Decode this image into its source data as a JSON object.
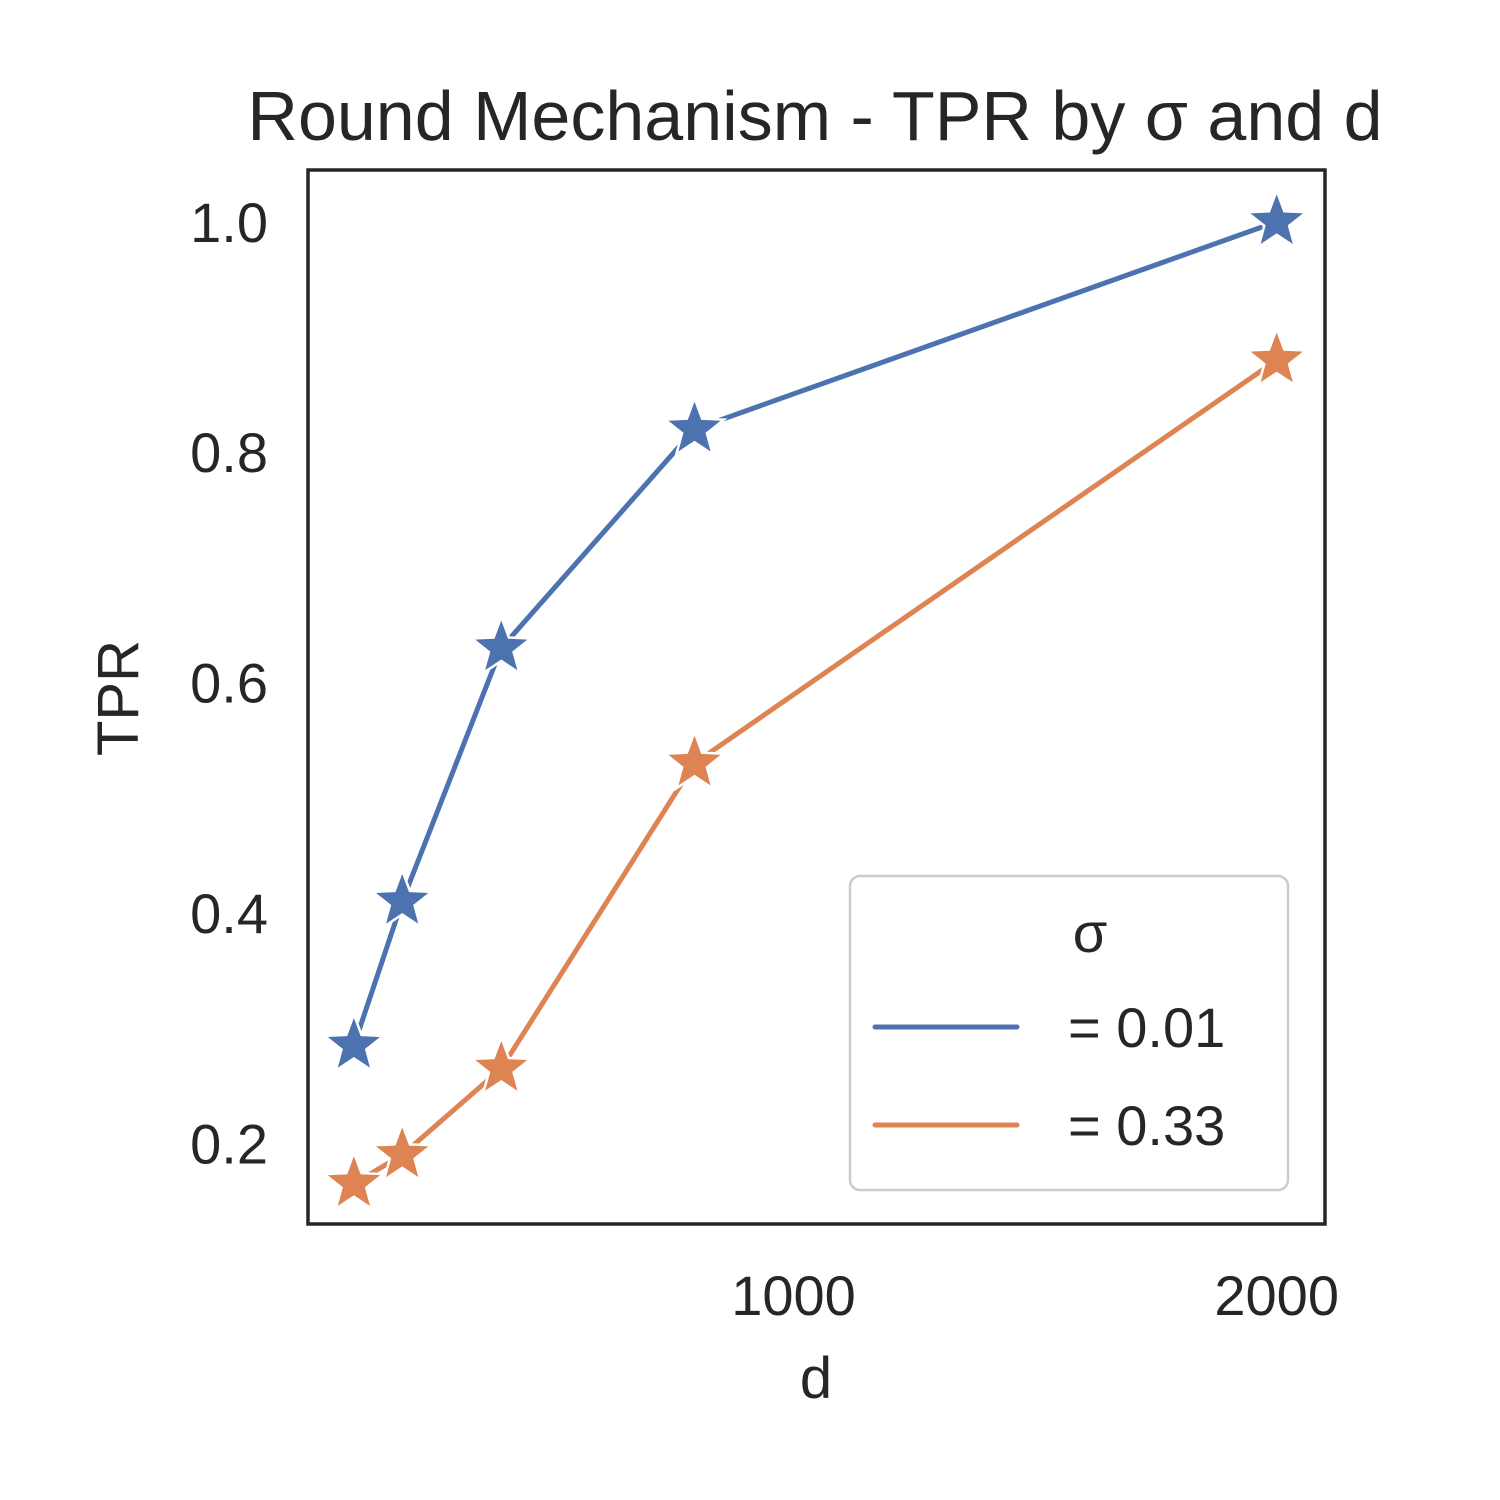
{
  "chart_data": {
    "type": "line",
    "title": "Round Mechanism - TPR by σ and d",
    "xlabel": "d",
    "ylabel": "TPR",
    "xlim": [
      -5,
      2100
    ],
    "ylim": [
      0.13,
      1.045
    ],
    "xticks": [
      1000,
      2000
    ],
    "yticks": [
      0.2,
      0.4,
      0.6,
      0.8,
      1.0
    ],
    "xtick_labels": [
      "1000",
      "2000"
    ],
    "ytick_labels": [
      "0.2",
      "0.4",
      "0.6",
      "0.8",
      "1.0"
    ],
    "grid": false,
    "marker": "star",
    "legend": {
      "title": "σ",
      "placement": "lower-right"
    },
    "series": [
      {
        "name": "= 0.01",
        "color": "#4c72b0",
        "x": [
          90,
          190,
          395,
          795,
          2000
        ],
        "y": [
          0.285,
          0.41,
          0.63,
          0.82,
          1.0
        ]
      },
      {
        "name": "= 0.33",
        "color": "#dd8452",
        "x": [
          90,
          190,
          395,
          795,
          2000
        ],
        "y": [
          0.165,
          0.19,
          0.265,
          0.53,
          0.88
        ]
      }
    ]
  }
}
